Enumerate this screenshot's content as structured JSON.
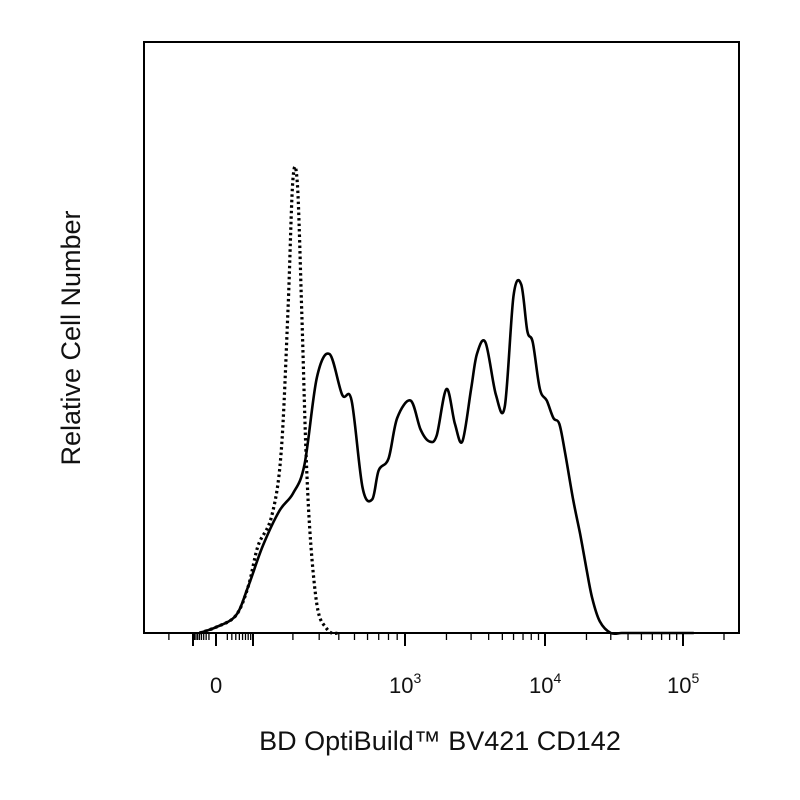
{
  "chart_data": {
    "type": "line",
    "title": "",
    "xlabel": "BD OptiBuild™ BV421 CD142",
    "ylabel": "Relative Cell Number",
    "xscale": "biexponential",
    "xlim": [
      -300,
      200000
    ],
    "ylim": [
      0,
      1
    ],
    "grid": false,
    "legend": "none",
    "x_tick_labels": [
      {
        "base": "0",
        "exp": "",
        "x": 0
      },
      {
        "base": "10",
        "exp": "3",
        "x": 1000
      },
      {
        "base": "10",
        "exp": "4",
        "x": 10000
      },
      {
        "base": "10",
        "exp": "5",
        "x": 100000
      }
    ],
    "series": [
      {
        "style": "solid",
        "x": [
          -60,
          0,
          40,
          80,
          120,
          160,
          200,
          240,
          290,
          350,
          420,
          480,
          560,
          640,
          700,
          800,
          900,
          1100,
          1300,
          1500,
          1700,
          2000,
          2300,
          2600,
          3000,
          3300,
          3800,
          4500,
          5200,
          6000,
          6800,
          7500,
          8200,
          9200,
          10300,
          11500,
          12700,
          14000,
          16000,
          18000,
          20000,
          22000,
          25000,
          30000,
          36000,
          45000,
          55000,
          70000,
          90000,
          120000
        ],
        "y": [
          0.0,
          0.01,
          0.03,
          0.08,
          0.15,
          0.21,
          0.24,
          0.29,
          0.44,
          0.48,
          0.41,
          0.4,
          0.25,
          0.23,
          0.28,
          0.3,
          0.37,
          0.4,
          0.35,
          0.33,
          0.34,
          0.42,
          0.36,
          0.33,
          0.42,
          0.48,
          0.5,
          0.41,
          0.39,
          0.58,
          0.6,
          0.52,
          0.5,
          0.42,
          0.4,
          0.37,
          0.36,
          0.31,
          0.23,
          0.17,
          0.11,
          0.06,
          0.02,
          0.0,
          0.0,
          0.0,
          0.0,
          0.0,
          0.0,
          0.0
        ]
      },
      {
        "style": "dotted",
        "x": [
          -60,
          0,
          40,
          80,
          110,
          140,
          165,
          185,
          200,
          215,
          230,
          245,
          260,
          280,
          300,
          330,
          360,
          400
        ],
        "y": [
          0.0,
          0.01,
          0.03,
          0.08,
          0.15,
          0.2,
          0.31,
          0.56,
          0.78,
          0.77,
          0.55,
          0.32,
          0.18,
          0.08,
          0.03,
          0.01,
          0.0,
          0.0
        ]
      }
    ]
  }
}
